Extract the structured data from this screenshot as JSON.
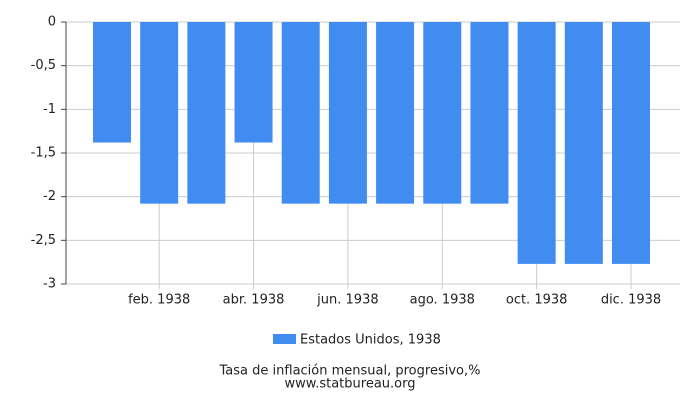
{
  "chart_data": {
    "type": "bar",
    "categories": [
      null,
      "feb. 1938",
      null,
      "abr. 1938",
      null,
      "jun. 1938",
      null,
      "ago. 1938",
      null,
      "oct. 1938",
      null,
      "dic. 1938"
    ],
    "series": [
      {
        "name": "Estados Unidos, 1938",
        "color": "#418cf0",
        "values": [
          -1.38,
          -2.08,
          -2.08,
          -1.38,
          -2.08,
          -2.08,
          -2.08,
          -2.08,
          -2.08,
          -2.77,
          -2.77,
          -2.77
        ]
      }
    ],
    "ylim": [
      -3,
      0
    ],
    "yticks": [
      0,
      {
        "value": -0.5,
        "label": "-0,5"
      },
      -1,
      {
        "value": -1.5,
        "label": "-1,5"
      },
      -2,
      {
        "value": -2.5,
        "label": "-2,5"
      },
      -3
    ],
    "grid": true,
    "legend": "bottom",
    "x_label": "Tasa de inflación mensual, progresivo,%",
    "source": "www.statbureau.org"
  }
}
